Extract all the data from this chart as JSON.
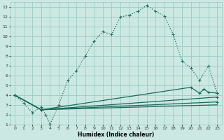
{
  "xlabel": "Humidex (Indice chaleur)",
  "bg_color": "#cce8e3",
  "grid_color": "#99ccc5",
  "line_color": "#1a6b5a",
  "xlim": [
    -0.5,
    23.5
  ],
  "ylim": [
    1,
    13.5
  ],
  "xticks": [
    0,
    1,
    2,
    3,
    4,
    5,
    6,
    7,
    8,
    9,
    10,
    11,
    12,
    13,
    14,
    15,
    16,
    17,
    18,
    19,
    20,
    21,
    22,
    23
  ],
  "yticks": [
    1,
    2,
    3,
    4,
    5,
    6,
    7,
    8,
    9,
    10,
    11,
    12,
    13
  ],
  "line1_x": [
    0,
    1,
    2,
    3,
    3.5,
    4,
    5,
    6,
    7,
    8,
    9,
    10,
    11,
    12,
    13,
    14,
    15,
    16,
    17,
    18,
    19,
    20,
    21,
    22,
    23
  ],
  "line1_y": [
    4,
    3.2,
    2.2,
    2.8,
    2,
    1,
    3,
    5.5,
    6.5,
    8,
    9.5,
    10.5,
    10.2,
    12,
    12.2,
    12.6,
    13.2,
    12.6,
    12.1,
    10.2,
    7.5,
    6.8,
    5.5,
    7,
    4.2
  ],
  "line2_x": [
    0,
    3,
    20,
    21,
    21.5,
    22,
    23
  ],
  "line2_y": [
    4,
    2.5,
    4.8,
    4.2,
    4.6,
    4.3,
    4.2
  ],
  "line3_x": [
    0,
    3,
    23
  ],
  "line3_y": [
    4,
    2.5,
    3.8
  ],
  "line4_x": [
    0,
    3,
    23
  ],
  "line4_y": [
    4,
    2.5,
    3.3
  ],
  "line5_x": [
    0,
    3,
    23
  ],
  "line5_y": [
    4,
    2.5,
    3.0
  ]
}
